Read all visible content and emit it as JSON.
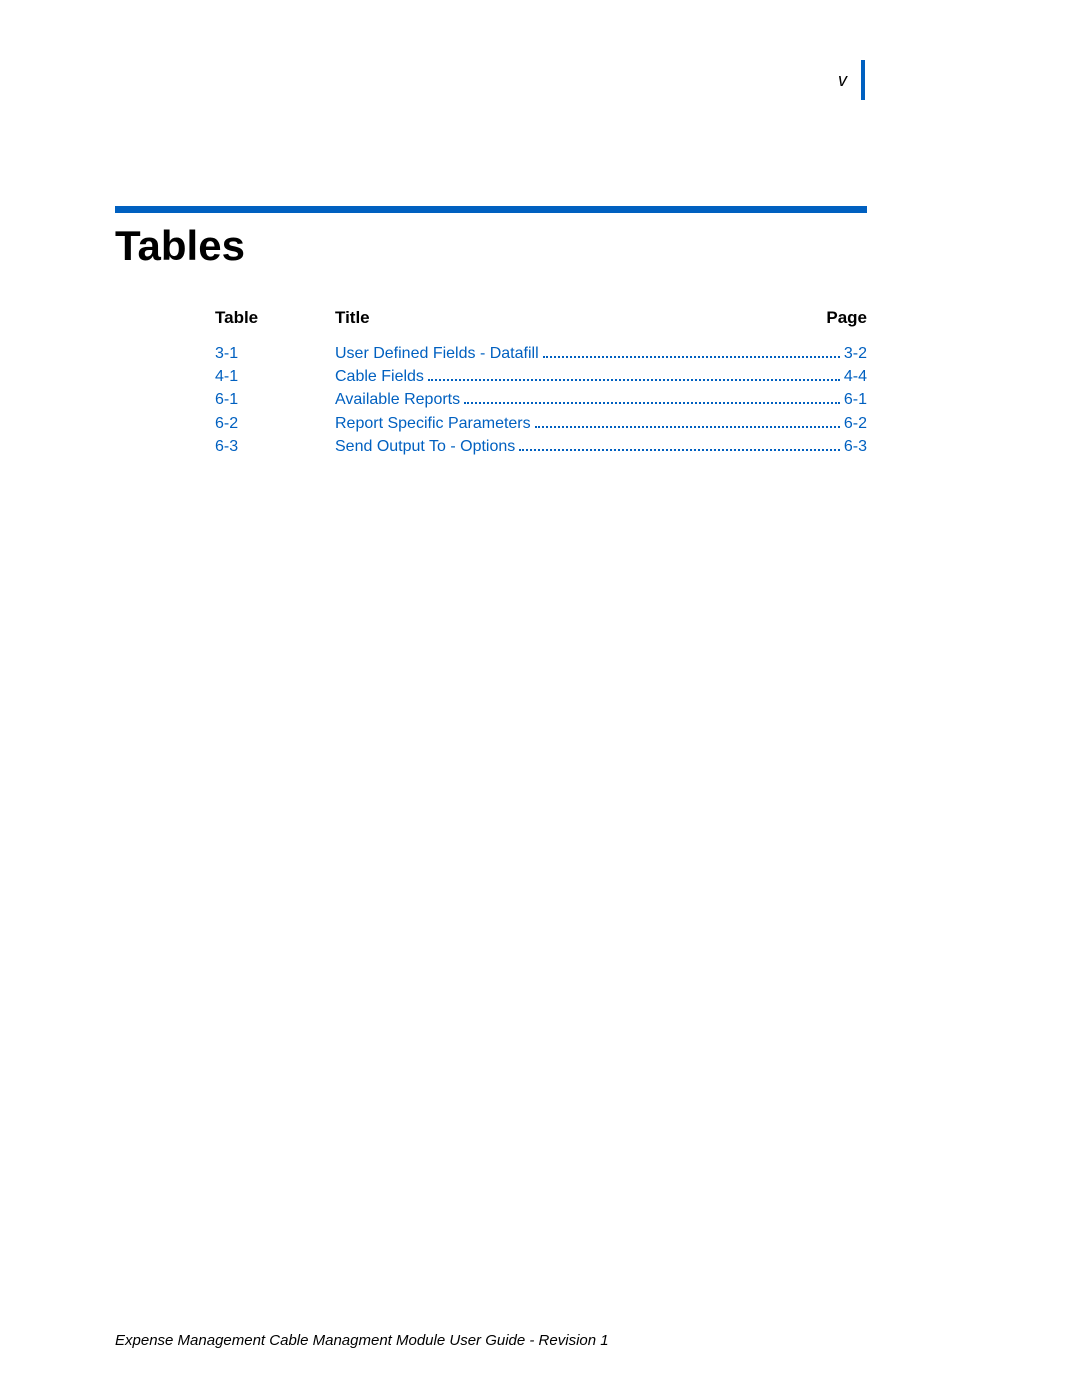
{
  "page_marker": "v",
  "title": "Tables",
  "columns": {
    "table": "Table",
    "title": "Title",
    "page": "Page"
  },
  "entries": [
    {
      "num": "3-1",
      "title": "User Defined Fields - Datafill",
      "page": "3-2"
    },
    {
      "num": "4-1",
      "title": "Cable Fields",
      "page": "4-4"
    },
    {
      "num": "6-1",
      "title": "Available Reports",
      "page": "6-1"
    },
    {
      "num": "6-2",
      "title": "Report Specific Parameters",
      "page": "6-2"
    },
    {
      "num": "6-3",
      "title": "Send Output To - Options",
      "page": "6-3"
    }
  ],
  "footer": "Expense Management Cable Managment Module User Guide - Revision 1",
  "colors": {
    "accent": "#0060c0",
    "text": "#000000",
    "link": "#0060c0",
    "background": "#ffffff"
  }
}
